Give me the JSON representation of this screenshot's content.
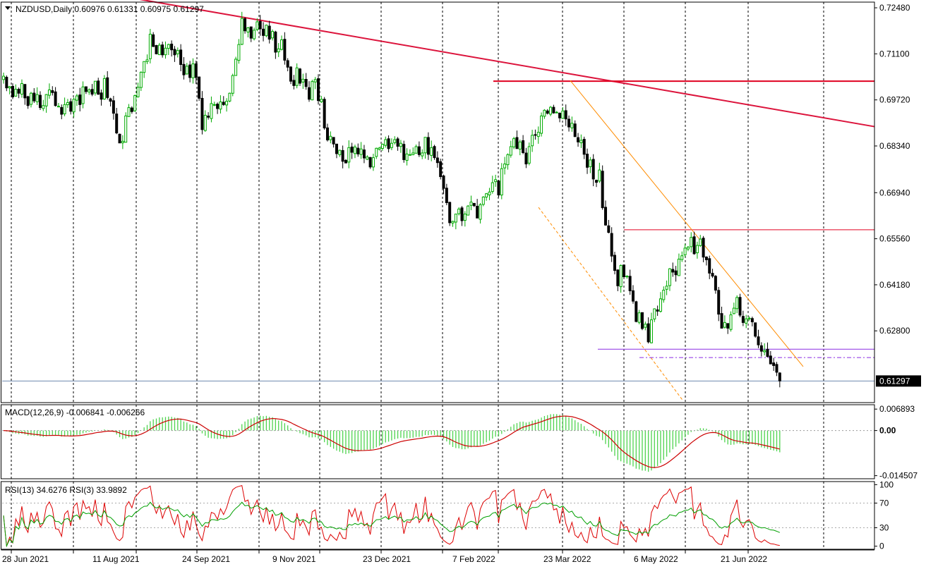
{
  "header": {
    "symbol_line": "NZDUSD,Daily  0.60976 0.61331 0.60975 0.61297",
    "menu_icon": "triangle-down-icon"
  },
  "colors": {
    "bull": "#00aa00",
    "bear": "#000000",
    "trendline": "#dc143c",
    "channel": "#ff8c00",
    "support": "#8a2be2",
    "price_line": "#6e8aaf",
    "macd_hist": "#4fd34f",
    "macd_signal": "#cc0000",
    "rsi13": "#00a000",
    "rsi3": "#dd0000",
    "grid": "#000000"
  },
  "chart_data": [
    {
      "type": "candlestick",
      "title": "NZDUSD,Daily",
      "ohlc_header": {
        "open": 0.60976,
        "high": 0.61331,
        "low": 0.60975,
        "close": 0.61297
      },
      "current_price_label": "0.61297",
      "y_ticks": [
        "0.72480",
        "0.71100",
        "0.69720",
        "0.68340",
        "0.66940",
        "0.65560",
        "0.64180",
        "0.62800"
      ],
      "ylim": [
        0.6065,
        0.7265
      ],
      "x_ticks": [
        "28 Jun 2021",
        "11 Aug 2021",
        "24 Sep 2021",
        "9 Nov 2021",
        "23 Dec 2021",
        "7 Feb 2022",
        "23 Mar 2022",
        "6 May 2022",
        "21 Jun 2022"
      ],
      "closes": [
        0.7043,
        0.7008,
        0.7012,
        0.6981,
        0.7004,
        0.6992,
        0.7021,
        0.6978,
        0.6955,
        0.6992,
        0.6969,
        0.6988,
        0.6949,
        0.6955,
        0.6988,
        0.7002,
        0.6994,
        0.6955,
        0.6953,
        0.6929,
        0.6958,
        0.6964,
        0.6938,
        0.6974,
        0.6984,
        0.6958,
        0.7011,
        0.6997,
        0.7002,
        0.6989,
        0.7028,
        0.6989,
        0.6974,
        0.7036,
        0.6979,
        0.6968,
        0.6932,
        0.6873,
        0.6843,
        0.6848,
        0.6924,
        0.6949,
        0.6937,
        0.6985,
        0.701,
        0.7055,
        0.7087,
        0.7092,
        0.7169,
        0.7132,
        0.711,
        0.7136,
        0.7107,
        0.7127,
        0.7138,
        0.7122,
        0.7107,
        0.712,
        0.7078,
        0.7047,
        0.7073,
        0.7039,
        0.708,
        0.7039,
        0.6977,
        0.6883,
        0.6926,
        0.692,
        0.6961,
        0.6958,
        0.6946,
        0.6966,
        0.6958,
        0.6968,
        0.6992,
        0.7045,
        0.7094,
        0.7138,
        0.7216,
        0.7179,
        0.7188,
        0.7157,
        0.7181,
        0.7206,
        0.7185,
        0.7165,
        0.7196,
        0.7154,
        0.7177,
        0.7115,
        0.7125,
        0.7152,
        0.7091,
        0.707,
        0.7028,
        0.7015,
        0.7068,
        0.7022,
        0.7034,
        0.7012,
        0.6974,
        0.7027,
        0.7033,
        0.697,
        0.6974,
        0.6888,
        0.6852,
        0.6863,
        0.684,
        0.6811,
        0.6821,
        0.6788,
        0.6783,
        0.6829,
        0.6815,
        0.6831,
        0.681,
        0.6825,
        0.6798,
        0.6801,
        0.6771,
        0.6799,
        0.6827,
        0.6828,
        0.6839,
        0.6853,
        0.6826,
        0.6842,
        0.6853,
        0.6833,
        0.6842,
        0.6793,
        0.681,
        0.6808,
        0.6813,
        0.6832,
        0.6808,
        0.6813,
        0.686,
        0.6809,
        0.6829,
        0.6799,
        0.6784,
        0.6742,
        0.6707,
        0.6664,
        0.6604,
        0.6608,
        0.663,
        0.6645,
        0.661,
        0.663,
        0.6654,
        0.6666,
        0.6655,
        0.6618,
        0.6658,
        0.6681,
        0.6691,
        0.6696,
        0.6724,
        0.6733,
        0.6687,
        0.6766,
        0.678,
        0.6808,
        0.6832,
        0.6856,
        0.6826,
        0.6846,
        0.6814,
        0.678,
        0.6832,
        0.6866,
        0.6866,
        0.6875,
        0.6924,
        0.6941,
        0.6932,
        0.695,
        0.6933,
        0.6935,
        0.6918,
        0.6939,
        0.6915,
        0.6891,
        0.6902,
        0.6862,
        0.6846,
        0.6851,
        0.6809,
        0.677,
        0.6792,
        0.6735,
        0.6725,
        0.6762,
        0.6649,
        0.6597,
        0.6575,
        0.6504,
        0.6461,
        0.6415,
        0.6476,
        0.6442,
        0.6444,
        0.64,
        0.6369,
        0.6308,
        0.6334,
        0.6287,
        0.63,
        0.6247,
        0.6313,
        0.6346,
        0.6339,
        0.6376,
        0.6402,
        0.6414,
        0.6466,
        0.6456,
        0.6448,
        0.6495,
        0.6505,
        0.6528,
        0.6531,
        0.656,
        0.6511,
        0.6536,
        0.6555,
        0.6501,
        0.6493,
        0.6453,
        0.6444,
        0.6402,
        0.633,
        0.6288,
        0.6305,
        0.6288,
        0.6328,
        0.6348,
        0.638,
        0.6327,
        0.6305,
        0.6316,
        0.6318,
        0.6307,
        0.6264,
        0.6238,
        0.6219,
        0.6221,
        0.6203,
        0.6181,
        0.6176,
        0.6156,
        0.613
      ]
    },
    {
      "type": "macd",
      "label": "MACD(12,26,9) -0.006841 -0.006266",
      "params": [
        12,
        26,
        9
      ],
      "main": -0.006841,
      "signal": -0.006266,
      "y_ticks": [
        "0.006893",
        "0.00",
        "-0.014507"
      ],
      "ylim": [
        -0.0155,
        0.0083
      ]
    },
    {
      "type": "rsi",
      "label": "RSI(13) 34.6276  RSI(3) 33.9892",
      "rsi13": 34.6276,
      "rsi3": 33.9892,
      "y_ticks": [
        "100",
        "70",
        "30",
        "0"
      ],
      "levels": [
        70,
        30
      ],
      "ylim": [
        -5,
        105
      ]
    }
  ]
}
